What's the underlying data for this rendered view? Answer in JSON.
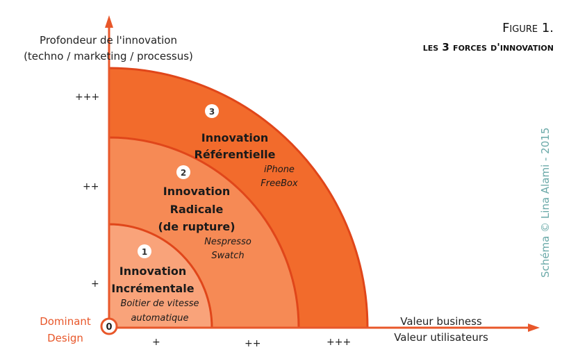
{
  "figure": {
    "label": "Figure 1.",
    "title": "les 3 forces d'innovation"
  },
  "y_axis": {
    "title_line1": "Profondeur de l'innovation",
    "title_line2": "(techno / marketing / processus)",
    "ticks": [
      "+++",
      "++",
      "+"
    ]
  },
  "x_axis": {
    "title_line1": "Valeur business",
    "title_line2": "Valeur utilisateurs",
    "ticks": [
      "+",
      "++",
      "+++"
    ]
  },
  "origin": {
    "number": "0",
    "label_line1": "Dominant",
    "label_line2": "Design"
  },
  "zones": [
    {
      "number": "1",
      "title_line1": "Innovation",
      "title_line2": "Incrémentale",
      "example_line1": "Boitier de vitesse",
      "example_line2": "automatique",
      "color": "#f9a37a"
    },
    {
      "number": "2",
      "title_line1": "Innovation",
      "title_line2": "Radicale",
      "title_line3": "(de rupture)",
      "example_line1": "Nespresso",
      "example_line2": "Swatch",
      "color": "#f68a55"
    },
    {
      "number": "3",
      "title_line1": "Innovation",
      "title_line2": "Référentielle",
      "example_line1": "iPhone",
      "example_line2": "FreeBox",
      "color": "#f26b2c"
    }
  ],
  "colors": {
    "axis": "#e8572a",
    "outline": "#e0461a",
    "credit": "#6aa9a8"
  },
  "credit": "Schéma © Lina Alami - 2015"
}
